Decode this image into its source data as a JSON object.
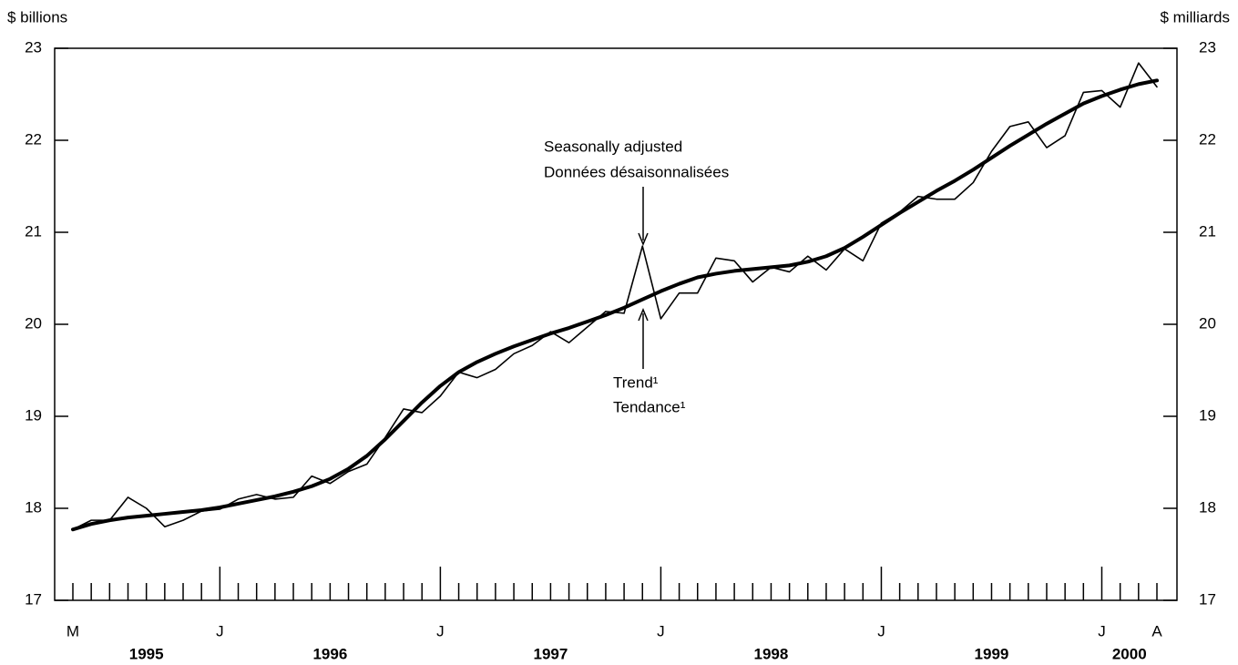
{
  "chart_data": {
    "type": "line",
    "y_axis_label": "$ billions",
    "y2_axis_label": "$ milliards",
    "categories": [
      "M",
      null,
      null,
      null,
      null,
      null,
      null,
      null,
      "J",
      null,
      null,
      null,
      null,
      null,
      null,
      null,
      null,
      null,
      null,
      null,
      "J",
      null,
      null,
      null,
      null,
      null,
      null,
      null,
      null,
      null,
      null,
      null,
      "J",
      null,
      null,
      null,
      null,
      null,
      null,
      null,
      null,
      null,
      null,
      null,
      "J",
      null,
      null,
      null,
      null,
      null,
      null,
      null,
      null,
      null,
      null,
      null,
      "J",
      null,
      null,
      "A"
    ],
    "year_labels": [
      "1995",
      "1996",
      "1997",
      "1998",
      "1999",
      "2000"
    ],
    "ylim": [
      17,
      23
    ],
    "yticks": [
      17,
      18,
      19,
      20,
      21,
      22,
      23
    ],
    "y2lim": [
      17,
      23
    ],
    "y2ticks": [
      17,
      18,
      19,
      20,
      21,
      22,
      23
    ],
    "grid": false,
    "series": [
      {
        "name": "Seasonally adjusted",
        "name_fr": "Données désaisonnalisées",
        "color": "#000000",
        "width": 1.6,
        "values": [
          17.77,
          17.87,
          17.87,
          18.12,
          18.0,
          17.8,
          17.87,
          17.97,
          17.99,
          18.1,
          18.15,
          18.1,
          18.12,
          18.35,
          18.27,
          18.4,
          18.48,
          18.77,
          19.08,
          19.04,
          19.22,
          19.48,
          19.42,
          19.51,
          19.68,
          19.77,
          19.92,
          19.8,
          19.97,
          20.14,
          20.12,
          20.85,
          20.06,
          20.34,
          20.34,
          20.72,
          20.69,
          20.46,
          20.62,
          20.57,
          20.74,
          20.59,
          20.82,
          20.69,
          21.1,
          21.22,
          21.39,
          21.36,
          21.36,
          21.54,
          21.88,
          22.15,
          22.2,
          21.92,
          22.05,
          22.52,
          22.54,
          22.36,
          22.84,
          22.58
        ]
      },
      {
        "name": "Trend¹",
        "name_fr": "Tendance¹",
        "color": "#000000",
        "width": 4,
        "values": [
          17.77,
          17.83,
          17.87,
          17.9,
          17.92,
          17.94,
          17.96,
          17.98,
          18.01,
          18.05,
          18.09,
          18.13,
          18.18,
          18.24,
          18.32,
          18.43,
          18.57,
          18.75,
          18.95,
          19.15,
          19.33,
          19.48,
          19.59,
          19.68,
          19.76,
          19.83,
          19.9,
          19.96,
          20.03,
          20.1,
          20.18,
          20.27,
          20.36,
          20.44,
          20.51,
          20.55,
          20.58,
          20.6,
          20.62,
          20.64,
          20.68,
          20.74,
          20.83,
          20.95,
          21.08,
          21.21,
          21.33,
          21.45,
          21.56,
          21.68,
          21.81,
          21.94,
          22.06,
          22.18,
          22.29,
          22.4,
          22.48,
          22.55,
          22.61,
          22.65
        ]
      }
    ]
  }
}
